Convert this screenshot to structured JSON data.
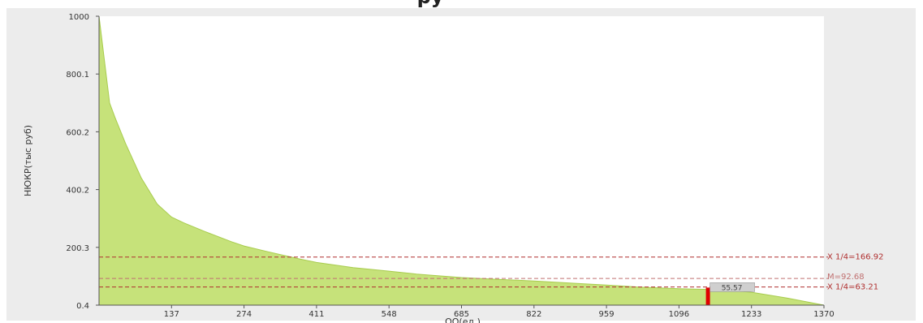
{
  "chart_data": {
    "type": "area",
    "title": "ру",
    "xlabel": "ОО(ед.)",
    "ylabel": "НЮКР(тыс руб)",
    "xlim": [
      0,
      1370
    ],
    "ylim": [
      0.4,
      1000
    ],
    "x_ticks": [
      137,
      274,
      411,
      548,
      685,
      822,
      959,
      1096,
      1233,
      1370
    ],
    "y_ticks": [
      0.4,
      200.3,
      400.2,
      600.2,
      800.1,
      1000
    ],
    "x_tick_labels": [
      "137",
      "274",
      "411",
      "548",
      "685",
      "822",
      "959",
      "1096",
      "1233",
      "1370"
    ],
    "y_tick_labels": [
      "0.4",
      "200.3",
      "400.2",
      "600.2",
      "800.1",
      "1000"
    ],
    "grid": false,
    "series": [
      {
        "color": "#c6e27a",
        "x": [
          0,
          20,
          30,
          50,
          80,
          110,
          137,
          160,
          200,
          250,
          274,
          320,
          380,
          411,
          480,
          548,
          600,
          685,
          750,
          822,
          900,
          959,
          1020,
          1096,
          1150,
          1180,
          1233,
          1300,
          1370
        ],
        "y": [
          1000,
          700,
          650,
          560,
          440,
          350,
          305,
          285,
          255,
          220,
          205,
          185,
          160,
          148,
          130,
          118,
          108,
          96,
          90,
          84,
          76,
          70,
          63,
          57,
          55,
          53,
          45,
          25,
          0.4
        ]
      }
    ],
    "reference_lines": [
      {
        "y": 166.92,
        "label": "X 1/4=166.92",
        "color": "#b03030"
      },
      {
        "y": 92.68,
        "label": "M=92.68",
        "color": "#c07070"
      },
      {
        "y": 63.21,
        "label": "X 1/4=63.21",
        "color": "#b03030"
      }
    ],
    "marker": {
      "x": 1150,
      "y": 55.57,
      "label": "55.57",
      "color": "#e00000"
    },
    "colors": {
      "fill": "#c6e27a",
      "edge": "#a8cc4e",
      "marker": "#e00000",
      "ref": "#b03030"
    }
  }
}
